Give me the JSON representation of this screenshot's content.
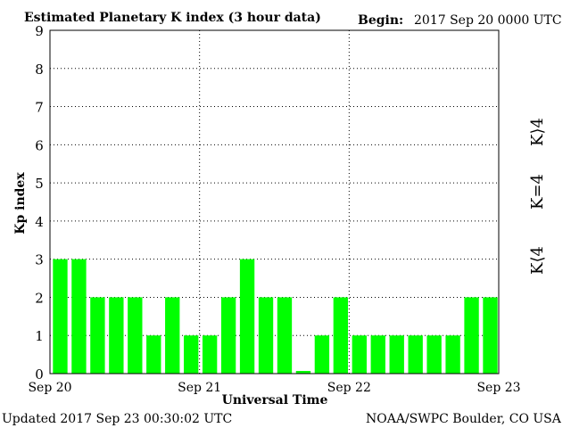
{
  "header": {
    "title": "Estimated Planetary K index (3 hour data)",
    "begin_label": "Begin:",
    "begin_value": "2017 Sep 20 0000 UTC"
  },
  "footer": {
    "updated": "Updated 2017 Sep 23 00:30:02 UTC",
    "source": "NOAA/SWPC Boulder, CO USA"
  },
  "legend": {
    "above": "K⟩4",
    "equal": "K=4",
    "below": "K⟨4",
    "colors": {
      "above": "#ff3300",
      "equal": "#ffd700",
      "below": "#33ff33"
    }
  },
  "colors": {
    "bar": "#00ff00",
    "grid": "#000000",
    "frame": "#000000"
  },
  "chart_data": {
    "type": "bar",
    "title": "Estimated Planetary K index (3 hour data)",
    "xlabel": "Universal Time",
    "ylabel": "Kp index",
    "ylim": [
      0,
      9
    ],
    "yticks": [
      0,
      1,
      2,
      3,
      4,
      5,
      6,
      7,
      8,
      9
    ],
    "xtick_labels": [
      "Sep 20",
      "Sep 21",
      "Sep 22",
      "Sep 23"
    ],
    "grid": true,
    "values": [
      3,
      3,
      2,
      2,
      2,
      1,
      2,
      1,
      1,
      2,
      3,
      2,
      2,
      0.07,
      1,
      2,
      1,
      1,
      1,
      1,
      1,
      1,
      2,
      2
    ]
  }
}
